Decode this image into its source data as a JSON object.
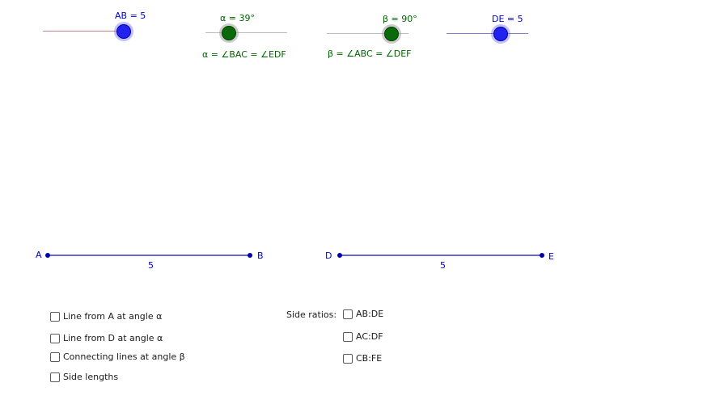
{
  "sliders": {
    "ab": {
      "label": "AB = 5",
      "value": 5,
      "color": "#0000cc"
    },
    "alpha": {
      "label": "α = 39°",
      "value_deg": 39,
      "caption": "α = ∠BAC = ∠EDF",
      "color": "#006400"
    },
    "beta": {
      "label": "β = 90°",
      "value_deg": 90,
      "caption": "β = ∠ABC = ∠DEF",
      "color": "#006400"
    },
    "de": {
      "label": "DE = 5",
      "value": 5,
      "color": "#0000cc"
    }
  },
  "segments": {
    "ab": {
      "start_label": "A",
      "end_label": "B",
      "length_label": "5"
    },
    "de": {
      "start_label": "D",
      "end_label": "E",
      "length_label": "5"
    }
  },
  "checkboxes_left": [
    {
      "label": "Line from A at angle α",
      "checked": false
    },
    {
      "label": "Line from D at angle α",
      "checked": false
    },
    {
      "label": "Connecting lines at angle β",
      "checked": false
    },
    {
      "label": "Side lengths",
      "checked": false
    }
  ],
  "side_ratios": {
    "heading": "Side ratios:",
    "items": [
      {
        "label": "AB:DE",
        "checked": false
      },
      {
        "label": "AC:DF",
        "checked": false
      },
      {
        "label": "CB:FE",
        "checked": false
      }
    ]
  }
}
